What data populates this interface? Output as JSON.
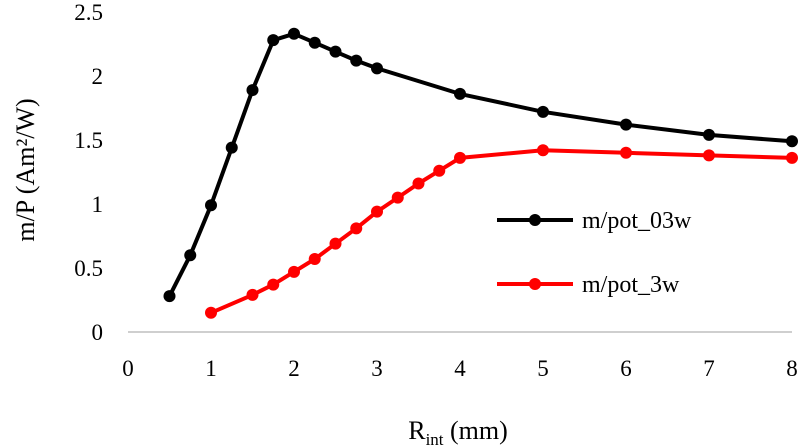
{
  "chart_data": {
    "type": "line",
    "title": "",
    "ylabel": "m/P (Am²/W)",
    "xlabel": {
      "main": "R",
      "sub": "int",
      "unit": " (mm)"
    },
    "xlim": [
      0,
      8
    ],
    "ylim": [
      0,
      2.5
    ],
    "xticks": [
      "0",
      "1",
      "2",
      "3",
      "4",
      "5",
      "6",
      "7",
      "8"
    ],
    "yticks": [
      "0",
      "0.5",
      "1",
      "1.5",
      "2",
      "2.5"
    ],
    "grid": false,
    "legend_position": "right",
    "series": [
      {
        "name": "m/pot_03w",
        "color": "#000000",
        "points": [
          [
            0.5,
            0.28
          ],
          [
            0.75,
            0.6
          ],
          [
            1.0,
            0.99
          ],
          [
            1.25,
            1.44
          ],
          [
            1.5,
            1.89
          ],
          [
            1.75,
            2.28
          ],
          [
            2.0,
            2.33
          ],
          [
            2.25,
            2.26
          ],
          [
            2.5,
            2.19
          ],
          [
            2.75,
            2.12
          ],
          [
            3.0,
            2.06
          ],
          [
            4.0,
            1.86
          ],
          [
            5.0,
            1.72
          ],
          [
            6.0,
            1.62
          ],
          [
            7.0,
            1.54
          ],
          [
            8.0,
            1.49
          ]
        ]
      },
      {
        "name": "m/pot_3w",
        "color": "#ff0000",
        "points": [
          [
            1.0,
            0.15
          ],
          [
            1.5,
            0.29
          ],
          [
            1.75,
            0.37
          ],
          [
            2.0,
            0.47
          ],
          [
            2.25,
            0.57
          ],
          [
            2.5,
            0.69
          ],
          [
            2.75,
            0.81
          ],
          [
            3.0,
            0.94
          ],
          [
            3.25,
            1.05
          ],
          [
            3.5,
            1.16
          ],
          [
            3.75,
            1.26
          ],
          [
            4.0,
            1.36
          ],
          [
            5.0,
            1.42
          ],
          [
            6.0,
            1.4
          ],
          [
            7.0,
            1.38
          ],
          [
            8.0,
            1.36
          ]
        ]
      }
    ]
  }
}
